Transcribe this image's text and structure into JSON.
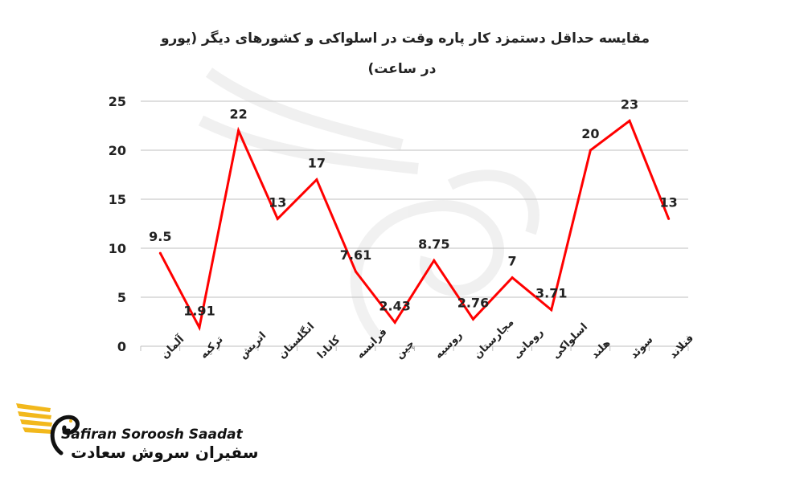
{
  "chart_data": {
    "type": "line",
    "title_line1": "مقایسه حداقل دستمزد کار پاره وقت در اسلواکی و کشورهای دیگر (یورو",
    "title_line2": "در ساعت)",
    "categories": [
      "آلمان",
      "ترکیه",
      "اتریش",
      "انگلستان",
      "کانادا",
      "فرانسه",
      "چین",
      "روسیه",
      "مجارستان",
      "رومانی",
      "اسلواکی",
      "هلند",
      "سوئد",
      "فنلاند"
    ],
    "series": [
      {
        "values": [
          9.5,
          1.91,
          22,
          13,
          17,
          7.61,
          2.43,
          8.75,
          2.76,
          7,
          3.71,
          20,
          23,
          13
        ],
        "data_labels": [
          "9.5",
          "1.91",
          "22",
          "13",
          "17",
          "7.61",
          "2.43",
          "8.75",
          "2.76",
          "7",
          "3.71",
          "20",
          "23",
          "13"
        ],
        "color": "#ff0000"
      }
    ],
    "ylim": [
      0,
      25
    ],
    "yticks": [
      0,
      5,
      10,
      15,
      20,
      25
    ],
    "grid": true,
    "legend": "none",
    "colors": {
      "line": "#ff0000",
      "grid": "#bfbfbf",
      "text": "#222222"
    }
  },
  "brand": {
    "name_en": "Safiran Soroosh Saadat",
    "name_fa": "سفیران سروش سعادت",
    "logo_icon": "swan-wing-logo-icon",
    "logo_color": "#f2b81c"
  }
}
